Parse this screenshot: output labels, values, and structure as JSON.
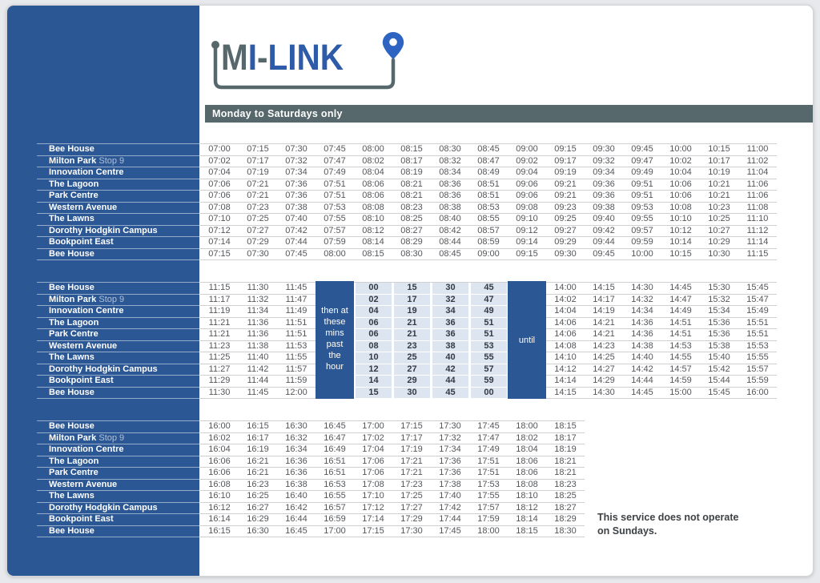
{
  "page": {
    "logo": {
      "part_m": "M",
      "part_i": "I",
      "part_hyphen": "-",
      "part_link": "LINK"
    },
    "header_bar": "Monday to Saturdays only",
    "note_line1": "This service does not operate",
    "note_line2": "on Sundays.",
    "colors": {
      "sidebar_blue": "#2b5794",
      "logo_blue": "#2d5ba9",
      "logo_slate": "#57686c",
      "day_bar_grey": "#57686c",
      "minute_cell_bg": "#dde5f1",
      "time_text": "#54565a"
    }
  },
  "stops": [
    {
      "name": "Bee House",
      "suffix": ""
    },
    {
      "name": "Milton Park",
      "suffix": "Stop 9"
    },
    {
      "name": "Innovation Centre",
      "suffix": ""
    },
    {
      "name": "The Lagoon",
      "suffix": ""
    },
    {
      "name": "Park Centre",
      "suffix": ""
    },
    {
      "name": "Western Avenue",
      "suffix": ""
    },
    {
      "name": "The Lawns",
      "suffix": ""
    },
    {
      "name": "Dorothy Hodgkin Campus",
      "suffix": ""
    },
    {
      "name": "Bookpoint East",
      "suffix": ""
    },
    {
      "name": "Bee House",
      "suffix": ""
    }
  ],
  "timetable": {
    "block1": {
      "rows": [
        [
          "07:00",
          "07:15",
          "07:30",
          "07:45",
          "08:00",
          "08:15",
          "08:30",
          "08:45",
          "09:00",
          "09:15",
          "09:30",
          "09:45",
          "10:00",
          "10:15",
          "11:00"
        ],
        [
          "07:02",
          "07:17",
          "07:32",
          "07:47",
          "08:02",
          "08:17",
          "08:32",
          "08:47",
          "09:02",
          "09:17",
          "09:32",
          "09:47",
          "10:02",
          "10:17",
          "11:02"
        ],
        [
          "07:04",
          "07:19",
          "07:34",
          "07:49",
          "08:04",
          "08:19",
          "08:34",
          "08:49",
          "09:04",
          "09:19",
          "09:34",
          "09:49",
          "10:04",
          "10:19",
          "11:04"
        ],
        [
          "07:06",
          "07:21",
          "07:36",
          "07:51",
          "08:06",
          "08:21",
          "08:36",
          "08:51",
          "09:06",
          "09:21",
          "09:36",
          "09:51",
          "10:06",
          "10:21",
          "11:06"
        ],
        [
          "07:06",
          "07:21",
          "07:36",
          "07:51",
          "08:06",
          "08:21",
          "08:36",
          "08:51",
          "09:06",
          "09:21",
          "09:36",
          "09:51",
          "10:06",
          "10:21",
          "11:06"
        ],
        [
          "07:08",
          "07:23",
          "07:38",
          "07:53",
          "08:08",
          "08:23",
          "08:38",
          "08:53",
          "09:08",
          "09:23",
          "09:38",
          "09:53",
          "10:08",
          "10:23",
          "11:08"
        ],
        [
          "07:10",
          "07:25",
          "07:40",
          "07:55",
          "08:10",
          "08:25",
          "08:40",
          "08:55",
          "09:10",
          "09:25",
          "09:40",
          "09:55",
          "10:10",
          "10:25",
          "11:10"
        ],
        [
          "07:12",
          "07:27",
          "07:42",
          "07:57",
          "08:12",
          "08:27",
          "08:42",
          "08:57",
          "09:12",
          "09:27",
          "09:42",
          "09:57",
          "10:12",
          "10:27",
          "11:12"
        ],
        [
          "07:14",
          "07:29",
          "07:44",
          "07:59",
          "08:14",
          "08:29",
          "08:44",
          "08:59",
          "09:14",
          "09:29",
          "09:44",
          "09:59",
          "10:14",
          "10:29",
          "11:14"
        ],
        [
          "07:15",
          "07:30",
          "07:45",
          "08:00",
          "08:15",
          "08:30",
          "08:45",
          "09:00",
          "09:15",
          "09:30",
          "09:45",
          "10:00",
          "10:15",
          "10:30",
          "11:15"
        ]
      ]
    },
    "block2": {
      "left_rows": [
        [
          "11:15",
          "11:30",
          "11:45"
        ],
        [
          "11:17",
          "11:32",
          "11:47"
        ],
        [
          "11:19",
          "11:34",
          "11:49"
        ],
        [
          "11:21",
          "11:36",
          "11:51"
        ],
        [
          "11:21",
          "11:36",
          "11:51"
        ],
        [
          "11:23",
          "11:38",
          "11:53"
        ],
        [
          "11:25",
          "11:40",
          "11:55"
        ],
        [
          "11:27",
          "11:42",
          "11:57"
        ],
        [
          "11:29",
          "11:44",
          "11:59"
        ],
        [
          "11:30",
          "11:45",
          "12:00"
        ]
      ],
      "then_label_lines": [
        "then at",
        "these",
        "mins",
        "past",
        "the",
        "hour"
      ],
      "mins_rows": [
        [
          "00",
          "15",
          "30",
          "45"
        ],
        [
          "02",
          "17",
          "32",
          "47"
        ],
        [
          "04",
          "19",
          "34",
          "49"
        ],
        [
          "06",
          "21",
          "36",
          "51"
        ],
        [
          "06",
          "21",
          "36",
          "51"
        ],
        [
          "08",
          "23",
          "38",
          "53"
        ],
        [
          "10",
          "25",
          "40",
          "55"
        ],
        [
          "12",
          "27",
          "42",
          "57"
        ],
        [
          "14",
          "29",
          "44",
          "59"
        ],
        [
          "15",
          "30",
          "45",
          "00"
        ]
      ],
      "until_label": "until",
      "right_rows": [
        [
          "14:00",
          "14:15",
          "14:30",
          "14:45",
          "15:30",
          "15:45"
        ],
        [
          "14:02",
          "14:17",
          "14:32",
          "14:47",
          "15:32",
          "15:47"
        ],
        [
          "14:04",
          "14:19",
          "14:34",
          "14:49",
          "15:34",
          "15:49"
        ],
        [
          "14:06",
          "14:21",
          "14:36",
          "14:51",
          "15:36",
          "15:51"
        ],
        [
          "14:06",
          "14:21",
          "14:36",
          "14:51",
          "15:36",
          "15:51"
        ],
        [
          "14:08",
          "14:23",
          "14:38",
          "14:53",
          "15:38",
          "15:53"
        ],
        [
          "14:10",
          "14:25",
          "14:40",
          "14:55",
          "15:40",
          "15:55"
        ],
        [
          "14:12",
          "14:27",
          "14:42",
          "14:57",
          "15:42",
          "15:57"
        ],
        [
          "14:14",
          "14:29",
          "14:44",
          "14:59",
          "15:44",
          "15:59"
        ],
        [
          "14:15",
          "14:30",
          "14:45",
          "15:00",
          "15:45",
          "16:00"
        ]
      ]
    },
    "block3": {
      "rows": [
        [
          "16:00",
          "16:15",
          "16:30",
          "16:45",
          "17:00",
          "17:15",
          "17:30",
          "17:45",
          "18:00",
          "18:15"
        ],
        [
          "16:02",
          "16:17",
          "16:32",
          "16:47",
          "17:02",
          "17:17",
          "17:32",
          "17:47",
          "18:02",
          "18:17"
        ],
        [
          "16:04",
          "16:19",
          "16:34",
          "16:49",
          "17:04",
          "17:19",
          "17:34",
          "17:49",
          "18:04",
          "18:19"
        ],
        [
          "16:06",
          "16:21",
          "16:36",
          "16:51",
          "17:06",
          "17:21",
          "17:36",
          "17:51",
          "18:06",
          "18:21"
        ],
        [
          "16:06",
          "16:21",
          "16:36",
          "16:51",
          "17:06",
          "17:21",
          "17:36",
          "17:51",
          "18:06",
          "18:21"
        ],
        [
          "16:08",
          "16:23",
          "16:38",
          "16:53",
          "17:08",
          "17:23",
          "17:38",
          "17:53",
          "18:08",
          "18:23"
        ],
        [
          "16:10",
          "16:25",
          "16:40",
          "16:55",
          "17:10",
          "17:25",
          "17:40",
          "17:55",
          "18:10",
          "18:25"
        ],
        [
          "16:12",
          "16:27",
          "16:42",
          "16:57",
          "17:12",
          "17:27",
          "17:42",
          "17:57",
          "18:12",
          "18:27"
        ],
        [
          "16:14",
          "16:29",
          "16:44",
          "16:59",
          "17:14",
          "17:29",
          "17:44",
          "17:59",
          "18:14",
          "18:29"
        ],
        [
          "16:15",
          "16:30",
          "16:45",
          "17:00",
          "17:15",
          "17:30",
          "17:45",
          "18:00",
          "18:15",
          "18:30"
        ]
      ]
    }
  }
}
